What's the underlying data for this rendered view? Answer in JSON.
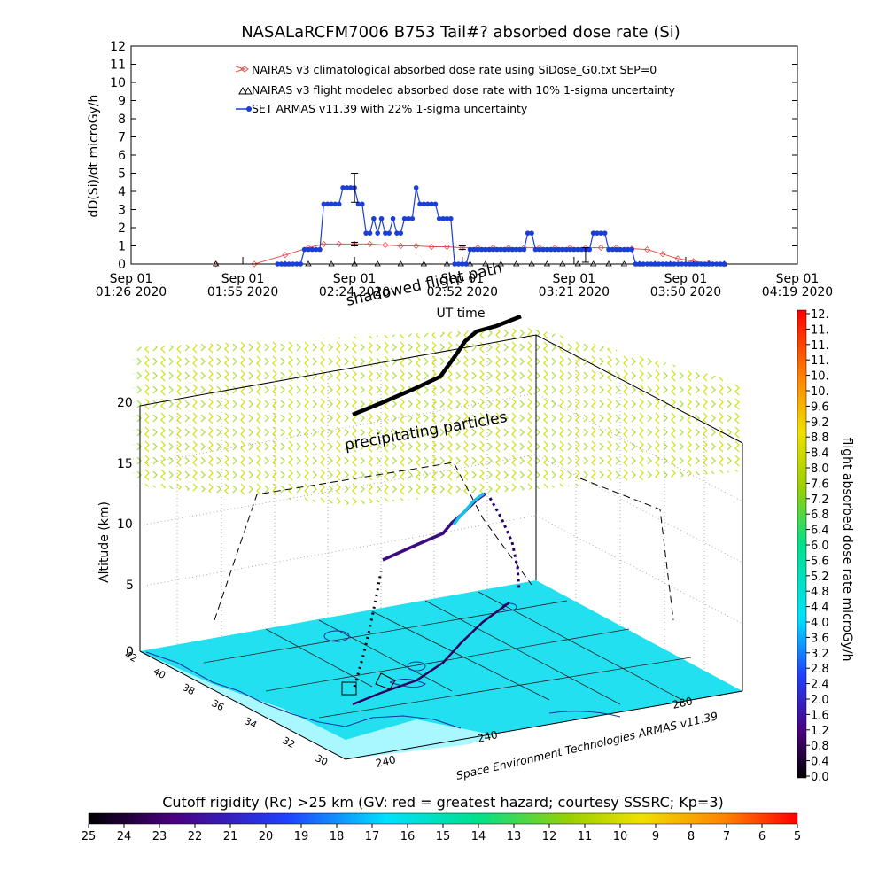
{
  "chart_data": [
    {
      "type": "line",
      "title": "NASALaRCFM7006  B753 Tail#? absorbed dose rate (Si)",
      "xlabel": "UT time",
      "ylabel": "dD(Si)/dt microGy/h",
      "ylim": [
        0,
        12
      ],
      "y_ticks": [
        "0",
        "1",
        "2",
        "3",
        "4",
        "5",
        "6",
        "7",
        "8",
        "9",
        "10",
        "11",
        "12"
      ],
      "x_ticks": [
        {
          "t": 0,
          "line1": "Sep 01",
          "line2": "01:26 2020"
        },
        {
          "t": 29,
          "line1": "Sep 01",
          "line2": "01:55 2020"
        },
        {
          "t": 58,
          "line1": "Sep 01",
          "line2": "02:24 2020"
        },
        {
          "t": 86,
          "line1": "Sep 01",
          "line2": "02:52 2020"
        },
        {
          "t": 115,
          "line1": "Sep 01",
          "line2": "03:21 2020"
        },
        {
          "t": 144,
          "line1": "Sep 01",
          "line2": "03:50 2020"
        },
        {
          "t": 173,
          "line1": "Sep 01",
          "line2": "04:19 2020"
        }
      ],
      "legend_position": "top",
      "series": [
        {
          "name": "NAIRAS v3 climatological absorbed dose rate using SiDose_G0.txt SEP=0",
          "color": "#e05050",
          "marker": "diamond",
          "x": [
            22,
            32,
            40,
            46,
            50,
            54,
            58,
            62,
            66,
            70,
            74,
            78,
            82,
            86,
            90,
            94,
            98,
            102,
            106,
            110,
            114,
            118,
            122,
            126,
            130,
            134,
            138,
            142,
            146,
            150,
            154
          ],
          "y": [
            0,
            0,
            0.5,
            0.9,
            1.1,
            1.1,
            1.1,
            1.1,
            1.05,
            1.0,
            1.0,
            0.95,
            0.95,
            0.9,
            0.9,
            0.9,
            0.9,
            0.9,
            0.9,
            0.9,
            0.9,
            0.9,
            0.9,
            0.9,
            0.85,
            0.8,
            0.55,
            0.3,
            0.15,
            0.05,
            0
          ]
        },
        {
          "name": "NAIRAS v3 flight modeled absorbed dose rate with 10% 1-sigma uncertainty",
          "color": "#000000",
          "marker": "triangle",
          "x": [
            22,
            40,
            46,
            52,
            58,
            64,
            70,
            76,
            82,
            88,
            92,
            96,
            100,
            104,
            108,
            112,
            116,
            120,
            124,
            128,
            132,
            136,
            140,
            146,
            150,
            154
          ],
          "y": [
            0,
            0,
            0,
            0,
            0,
            0,
            0,
            0,
            0,
            0,
            0,
            0,
            0,
            0,
            0,
            0,
            0,
            0,
            0,
            0,
            0,
            0,
            0,
            0,
            0,
            0
          ]
        },
        {
          "name": "SET ARMAS v11.39 with 22% 1-sigma uncertainty",
          "color": "#1a3fd6",
          "marker": "circle",
          "x": [
            38,
            39,
            40,
            41,
            42,
            43,
            44,
            45,
            46,
            47,
            48,
            49,
            50,
            51,
            52,
            53,
            54,
            55,
            56,
            57,
            58,
            59,
            60,
            61,
            62,
            63,
            64,
            65,
            66,
            67,
            68,
            69,
            70,
            71,
            72,
            73,
            74,
            75,
            76,
            77,
            78,
            79,
            80,
            81,
            82,
            83,
            84,
            85,
            86,
            87,
            88,
            89,
            90,
            91,
            92,
            93,
            94,
            95,
            96,
            97,
            98,
            99,
            100,
            101,
            102,
            103,
            104,
            105,
            106,
            107,
            108,
            109,
            110,
            111,
            112,
            113,
            114,
            115,
            116,
            117,
            118,
            119,
            120,
            121,
            122,
            123,
            124,
            125,
            126,
            127,
            128,
            129,
            130,
            131,
            132,
            133,
            134,
            135,
            136,
            137,
            138,
            139,
            140,
            141,
            142,
            143,
            144,
            145,
            146,
            147,
            148,
            149,
            150,
            151,
            152,
            153,
            154
          ],
          "y": [
            0,
            0,
            0,
            0,
            0,
            0,
            0,
            0.8,
            0.8,
            0.8,
            0.8,
            0.8,
            3.3,
            3.3,
            3.3,
            3.3,
            3.3,
            4.2,
            4.2,
            4.2,
            4.2,
            3.3,
            3.3,
            1.7,
            1.7,
            2.5,
            1.7,
            2.5,
            1.7,
            1.7,
            2.5,
            1.7,
            1.7,
            2.5,
            2.5,
            2.5,
            4.2,
            3.3,
            3.3,
            3.3,
            3.3,
            3.3,
            2.5,
            2.5,
            2.5,
            2.5,
            0,
            0,
            0,
            0,
            0.8,
            0.8,
            0.8,
            0.8,
            0.8,
            0.8,
            0.8,
            0.8,
            0.8,
            0.8,
            0.8,
            0.8,
            0.8,
            0.8,
            0.8,
            1.7,
            1.7,
            0.8,
            0.8,
            0.8,
            0.8,
            0.8,
            0.8,
            0.8,
            0.8,
            0.8,
            0.8,
            0.8,
            0.8,
            0.8,
            0.8,
            0.8,
            1.7,
            1.7,
            1.7,
            1.7,
            0.8,
            0.8,
            0.8,
            0.8,
            0.8,
            0.8,
            0.8,
            0,
            0,
            0,
            0,
            0,
            0,
            0,
            0,
            0,
            0,
            0,
            0,
            0,
            0,
            0,
            0,
            0,
            0,
            0,
            0,
            0,
            0,
            0,
            0
          ]
        }
      ]
    },
    {
      "type": "3d-trajectory",
      "zlabel": "Altitude (km)",
      "z_ticks": [
        "0",
        "5",
        "10",
        "15",
        "20"
      ],
      "lat_ticks": [
        "42",
        "40",
        "38",
        "36",
        "34",
        "32",
        "30"
      ],
      "lon_ticks": [
        "240",
        "240",
        "260",
        "280"
      ],
      "annotations": [
        "shadowed flight path",
        "precipitating particles",
        "Space Environment Technologies ARMAS v11.39"
      ],
      "colorbar": {
        "label": "flight absorbed dose rate microGy/h",
        "range": [
          0.0,
          12.0
        ],
        "ticks": [
          "0.0",
          "0.4",
          "0.8",
          "1.2",
          "1.6",
          "2.0",
          "2.4",
          "2.8",
          "3.2",
          "3.6",
          "4.0",
          "4.4",
          "4.8",
          "5.2",
          "5.6",
          "6.0",
          "6.4",
          "6.8",
          "7.2",
          "7.6",
          "8.0",
          "8.4",
          "8.8",
          "9.2",
          "9.6",
          "10.",
          "10.",
          "11.",
          "11.",
          "11.",
          "12."
        ]
      }
    },
    {
      "type": "heatmap",
      "title": "Cutoff rigidity (Rc) >25 km (GV: red = greatest hazard; courtesy SSSRC; Kp=3)",
      "ticks": [
        "25",
        "24",
        "23",
        "22",
        "21",
        "20",
        "19",
        "18",
        "17",
        "16",
        "15",
        "14",
        "13",
        "12",
        "11",
        "10",
        "9",
        "8",
        "7",
        "6",
        "5"
      ]
    }
  ]
}
